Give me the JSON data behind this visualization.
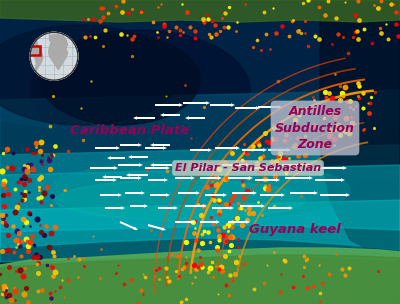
{
  "figsize": [
    4.0,
    3.04
  ],
  "dpi": 100,
  "bg_color": "#000000",
  "labels": {
    "caribbean_plate": "Caribbean Plate",
    "antilles": "Antilles\nSubduction\nZone",
    "el_pilar": "El Pilar - San Sebastian",
    "guyana": "Guyana keel"
  },
  "label_color": "#990055",
  "arrow_color": "#FFFFFF",
  "curve_colors": [
    "#FF8800",
    "#CC5500",
    "#FF4400"
  ],
  "inset_box_color": "#CC0000",
  "ocean": {
    "deep_blue": "#002244",
    "mid_blue": "#004488",
    "teal": "#007799",
    "cyan": "#009988",
    "light_cyan": "#00BBAA",
    "shelf": "#00CCBB"
  }
}
